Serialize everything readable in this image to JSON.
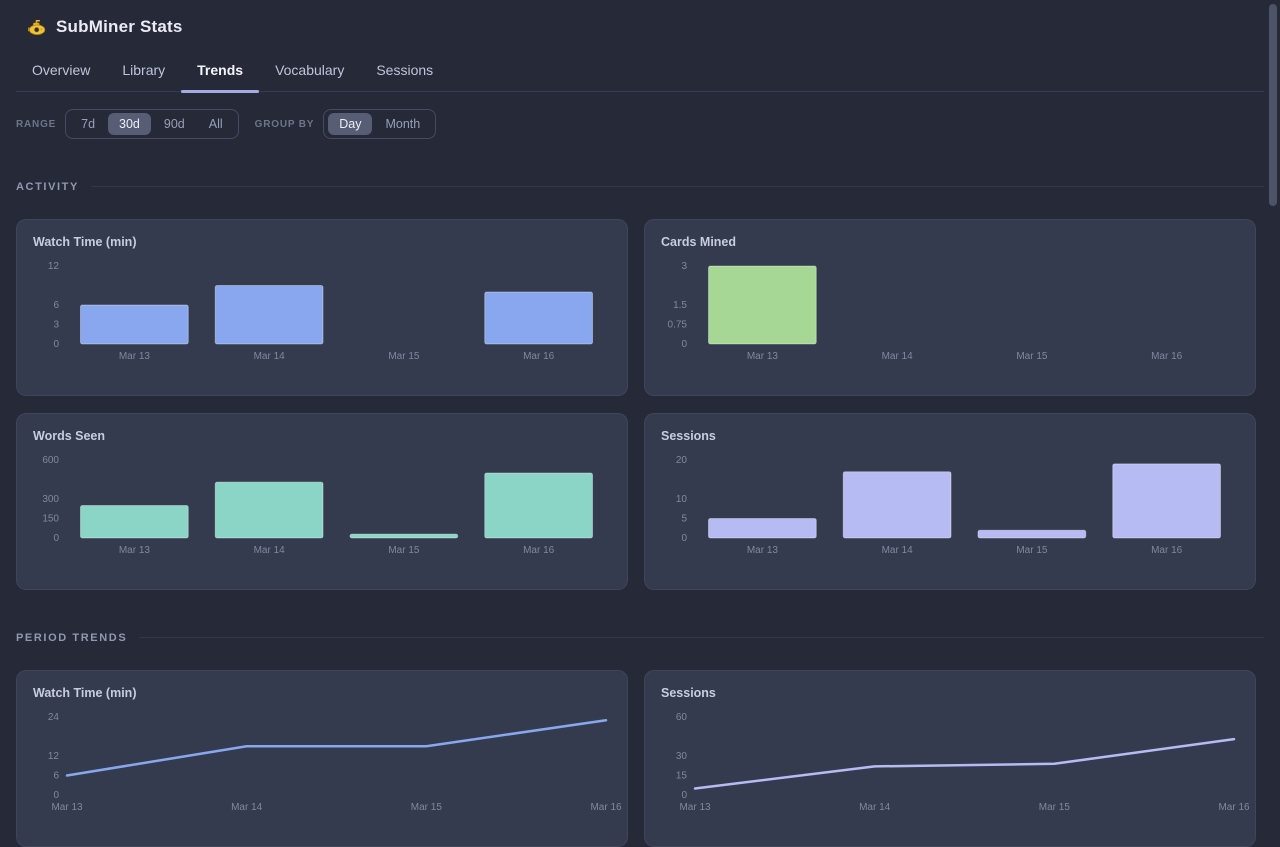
{
  "app": {
    "title": "SubMiner Stats"
  },
  "tabs": [
    {
      "label": "Overview",
      "active": false
    },
    {
      "label": "Library",
      "active": false
    },
    {
      "label": "Trends",
      "active": true
    },
    {
      "label": "Vocabulary",
      "active": false
    },
    {
      "label": "Sessions",
      "active": false
    }
  ],
  "controls": {
    "range_label": "RANGE",
    "range_options": [
      "7d",
      "30d",
      "90d",
      "All"
    ],
    "range_selected": "30d",
    "group_label": "GROUP BY",
    "group_options": [
      "Day",
      "Month"
    ],
    "group_selected": "Day"
  },
  "sections": [
    {
      "title": "ACTIVITY"
    },
    {
      "title": "PERIOD TRENDS"
    }
  ],
  "colors": {
    "blue": "#88a7ef",
    "green": "#a6d795",
    "teal": "#8bd5c7",
    "lavender": "#b7bbf4",
    "accent_underline": "#a2acde"
  },
  "chart_data": [
    {
      "type": "bar",
      "section": "ACTIVITY",
      "title": "Watch Time (min)",
      "categories": [
        "Mar 13",
        "Mar 14",
        "Mar 15",
        "Mar 16"
      ],
      "values": [
        6,
        9,
        0,
        8
      ],
      "color": "#88a7ef",
      "ylim": [
        0,
        12
      ],
      "yticks": [
        12,
        6,
        3,
        0
      ],
      "grid": false,
      "legend": false
    },
    {
      "type": "bar",
      "section": "ACTIVITY",
      "title": "Cards Mined",
      "categories": [
        "Mar 13",
        "Mar 14",
        "Mar 15",
        "Mar 16"
      ],
      "values": [
        3,
        0,
        0,
        0
      ],
      "color": "#a6d795",
      "ylim": [
        0,
        3
      ],
      "yticks": [
        3,
        1.5,
        0.75,
        0
      ],
      "grid": false,
      "legend": false
    },
    {
      "type": "bar",
      "section": "ACTIVITY",
      "title": "Words Seen",
      "categories": [
        "Mar 13",
        "Mar 14",
        "Mar 15",
        "Mar 16"
      ],
      "values": [
        250,
        430,
        30,
        500
      ],
      "color": "#8bd5c7",
      "ylim": [
        0,
        600
      ],
      "yticks": [
        600,
        300,
        150,
        0
      ],
      "grid": false,
      "legend": false
    },
    {
      "type": "bar",
      "section": "ACTIVITY",
      "title": "Sessions",
      "categories": [
        "Mar 13",
        "Mar 14",
        "Mar 15",
        "Mar 16"
      ],
      "values": [
        5,
        17,
        2,
        19
      ],
      "color": "#b7bbf4",
      "ylim": [
        0,
        20
      ],
      "yticks": [
        20,
        10,
        5,
        0
      ],
      "grid": false,
      "legend": false
    },
    {
      "type": "line",
      "section": "PERIOD TRENDS",
      "title": "Watch Time (min)",
      "categories": [
        "Mar 13",
        "Mar 14",
        "Mar 15",
        "Mar 16"
      ],
      "values": [
        6,
        15,
        15,
        23
      ],
      "color": "#88a7ef",
      "ylim": [
        0,
        24
      ],
      "yticks": [
        24,
        12,
        6,
        0
      ],
      "grid": false,
      "legend": false
    },
    {
      "type": "line",
      "section": "PERIOD TRENDS",
      "title": "Sessions",
      "categories": [
        "Mar 13",
        "Mar 14",
        "Mar 15",
        "Mar 16"
      ],
      "values": [
        5,
        22,
        24,
        43
      ],
      "color": "#b7bbf4",
      "ylim": [
        0,
        60
      ],
      "yticks": [
        60,
        30,
        15,
        0
      ],
      "grid": false,
      "legend": false
    }
  ]
}
